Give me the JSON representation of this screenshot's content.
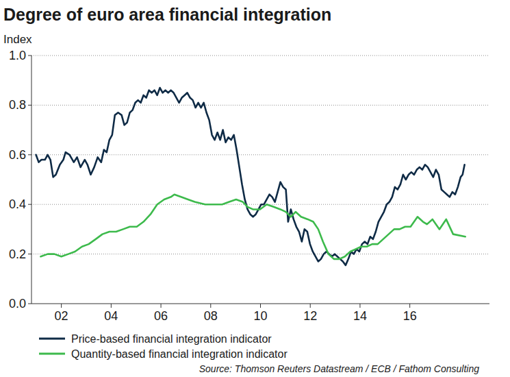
{
  "chart_data": {
    "type": "line",
    "title": "Degree of euro area financial integration",
    "y_label": "Index",
    "source": "Source: Thomson Reuters Datastream  / ECB / Fathom Consulting",
    "xlim": [
      2000.8,
      2019.2
    ],
    "xticks": [
      {
        "value": 2002,
        "label": "02"
      },
      {
        "value": 2004,
        "label": "04"
      },
      {
        "value": 2006,
        "label": "06"
      },
      {
        "value": 2008,
        "label": "08"
      },
      {
        "value": 2010,
        "label": "10"
      },
      {
        "value": 2012,
        "label": "12"
      },
      {
        "value": 2014,
        "label": "14"
      },
      {
        "value": 2016,
        "label": "16"
      }
    ],
    "ylim": [
      0,
      1
    ],
    "yticks": [
      {
        "value": 0,
        "label": "0.0"
      },
      0.2,
      0.4,
      0.6,
      0.8,
      {
        "value": 1,
        "label": "1.0"
      }
    ],
    "grid": true,
    "legend": "bottom",
    "series": [
      {
        "name": "Price-based financial integration indicator",
        "color": "#0f2b46",
        "x": [
          2000.98,
          2001.09,
          2001.2,
          2001.34,
          2001.45,
          2001.56,
          2001.67,
          2001.78,
          2001.94,
          2002.08,
          2002.17,
          2002.33,
          2002.5,
          2002.63,
          2002.77,
          2002.94,
          2003.05,
          2003.18,
          2003.32,
          2003.46,
          2003.6,
          2003.71,
          2003.82,
          2003.93,
          2004.04,
          2004.15,
          2004.28,
          2004.42,
          2004.53,
          2004.64,
          2004.75,
          2004.86,
          2004.97,
          2005.08,
          2005.19,
          2005.3,
          2005.41,
          2005.52,
          2005.63,
          2005.74,
          2005.85,
          2005.96,
          2006.07,
          2006.18,
          2006.29,
          2006.4,
          2006.51,
          2006.62,
          2006.73,
          2006.84,
          2006.95,
          2007.06,
          2007.17,
          2007.28,
          2007.39,
          2007.5,
          2007.61,
          2007.72,
          2007.83,
          2007.94,
          2008.05,
          2008.16,
          2008.27,
          2008.38,
          2008.49,
          2008.6,
          2008.71,
          2008.82,
          2008.93,
          2009.04,
          2009.15,
          2009.26,
          2009.37,
          2009.48,
          2009.59,
          2009.7,
          2009.81,
          2009.92,
          2010.03,
          2010.14,
          2010.25,
          2010.36,
          2010.47,
          2010.58,
          2010.69,
          2010.8,
          2010.91,
          2011.02,
          2011.11,
          2011.22,
          2011.33,
          2011.44,
          2011.55,
          2011.66,
          2011.77,
          2011.88,
          2011.99,
          2012.1,
          2012.21,
          2012.32,
          2012.43,
          2012.54,
          2012.65,
          2012.76,
          2012.87,
          2012.98,
          2013.09,
          2013.2,
          2013.31,
          2013.42,
          2013.53,
          2013.64,
          2013.75,
          2013.86,
          2013.97,
          2014.08,
          2014.19,
          2014.3,
          2014.41,
          2014.52,
          2014.63,
          2014.74,
          2014.85,
          2014.96,
          2015.07,
          2015.18,
          2015.29,
          2015.4,
          2015.51,
          2015.62,
          2015.73,
          2015.84,
          2015.95,
          2016.06,
          2016.17,
          2016.28,
          2016.39,
          2016.5,
          2016.61,
          2016.72,
          2016.83,
          2016.94,
          2017.05,
          2017.16,
          2017.27,
          2017.38,
          2017.49,
          2017.6,
          2017.71,
          2017.82,
          2017.93,
          2018.04,
          2018.12,
          2018.2
        ],
        "values": [
          0.6,
          0.57,
          0.58,
          0.58,
          0.6,
          0.58,
          0.51,
          0.52,
          0.56,
          0.58,
          0.61,
          0.6,
          0.57,
          0.59,
          0.55,
          0.58,
          0.56,
          0.52,
          0.55,
          0.59,
          0.57,
          0.62,
          0.61,
          0.66,
          0.68,
          0.76,
          0.77,
          0.76,
          0.72,
          0.73,
          0.77,
          0.78,
          0.81,
          0.82,
          0.81,
          0.84,
          0.83,
          0.86,
          0.85,
          0.86,
          0.84,
          0.87,
          0.85,
          0.86,
          0.85,
          0.86,
          0.85,
          0.83,
          0.81,
          0.83,
          0.84,
          0.85,
          0.83,
          0.82,
          0.79,
          0.81,
          0.79,
          0.81,
          0.77,
          0.74,
          0.68,
          0.66,
          0.69,
          0.66,
          0.7,
          0.65,
          0.67,
          0.66,
          0.68,
          0.62,
          0.55,
          0.48,
          0.42,
          0.38,
          0.36,
          0.35,
          0.36,
          0.38,
          0.4,
          0.4,
          0.42,
          0.44,
          0.43,
          0.41,
          0.45,
          0.49,
          0.47,
          0.46,
          0.33,
          0.38,
          0.34,
          0.31,
          0.29,
          0.25,
          0.3,
          0.29,
          0.24,
          0.21,
          0.19,
          0.17,
          0.18,
          0.2,
          0.21,
          0.2,
          0.19,
          0.2,
          0.19,
          0.18,
          0.17,
          0.155,
          0.18,
          0.21,
          0.2,
          0.22,
          0.21,
          0.24,
          0.25,
          0.24,
          0.27,
          0.26,
          0.29,
          0.33,
          0.35,
          0.37,
          0.4,
          0.41,
          0.43,
          0.47,
          0.46,
          0.48,
          0.52,
          0.5,
          0.52,
          0.53,
          0.52,
          0.54,
          0.55,
          0.54,
          0.56,
          0.55,
          0.53,
          0.51,
          0.54,
          0.52,
          0.46,
          0.45,
          0.44,
          0.43,
          0.45,
          0.44,
          0.47,
          0.51,
          0.52,
          0.56
        ]
      },
      {
        "name": "Quantity-based financial integration indicator",
        "color": "#3dba4c",
        "x": [
          2001.17,
          2001.45,
          2001.72,
          2002.0,
          2002.28,
          2002.55,
          2002.83,
          2003.1,
          2003.38,
          2003.65,
          2003.93,
          2004.2,
          2004.48,
          2004.75,
          2005.03,
          2005.3,
          2005.58,
          2005.85,
          2006.13,
          2006.4,
          2006.54,
          2006.81,
          2007.09,
          2007.36,
          2007.78,
          2008.19,
          2008.46,
          2008.74,
          2009.02,
          2009.29,
          2009.48,
          2009.7,
          2009.98,
          2010.25,
          2010.53,
          2010.8,
          2011.02,
          2011.22,
          2011.41,
          2011.63,
          2011.9,
          2012.12,
          2012.32,
          2012.51,
          2012.73,
          2012.95,
          2013.17,
          2013.39,
          2013.61,
          2013.83,
          2014.05,
          2014.27,
          2014.49,
          2014.71,
          2014.93,
          2015.15,
          2015.37,
          2015.59,
          2015.81,
          2016.03,
          2016.31,
          2016.53,
          2016.69,
          2016.91,
          2017.19,
          2017.46,
          2017.74,
          2018.23
        ],
        "values": [
          0.19,
          0.2,
          0.2,
          0.19,
          0.2,
          0.21,
          0.23,
          0.24,
          0.26,
          0.28,
          0.29,
          0.29,
          0.3,
          0.31,
          0.31,
          0.33,
          0.36,
          0.4,
          0.42,
          0.43,
          0.44,
          0.43,
          0.42,
          0.41,
          0.4,
          0.4,
          0.4,
          0.41,
          0.42,
          0.41,
          0.39,
          0.38,
          0.38,
          0.4,
          0.39,
          0.38,
          0.37,
          0.35,
          0.37,
          0.35,
          0.34,
          0.33,
          0.3,
          0.25,
          0.2,
          0.18,
          0.18,
          0.19,
          0.21,
          0.22,
          0.23,
          0.23,
          0.24,
          0.24,
          0.26,
          0.28,
          0.3,
          0.3,
          0.31,
          0.31,
          0.35,
          0.33,
          0.32,
          0.34,
          0.3,
          0.34,
          0.28,
          0.27
        ]
      }
    ]
  }
}
